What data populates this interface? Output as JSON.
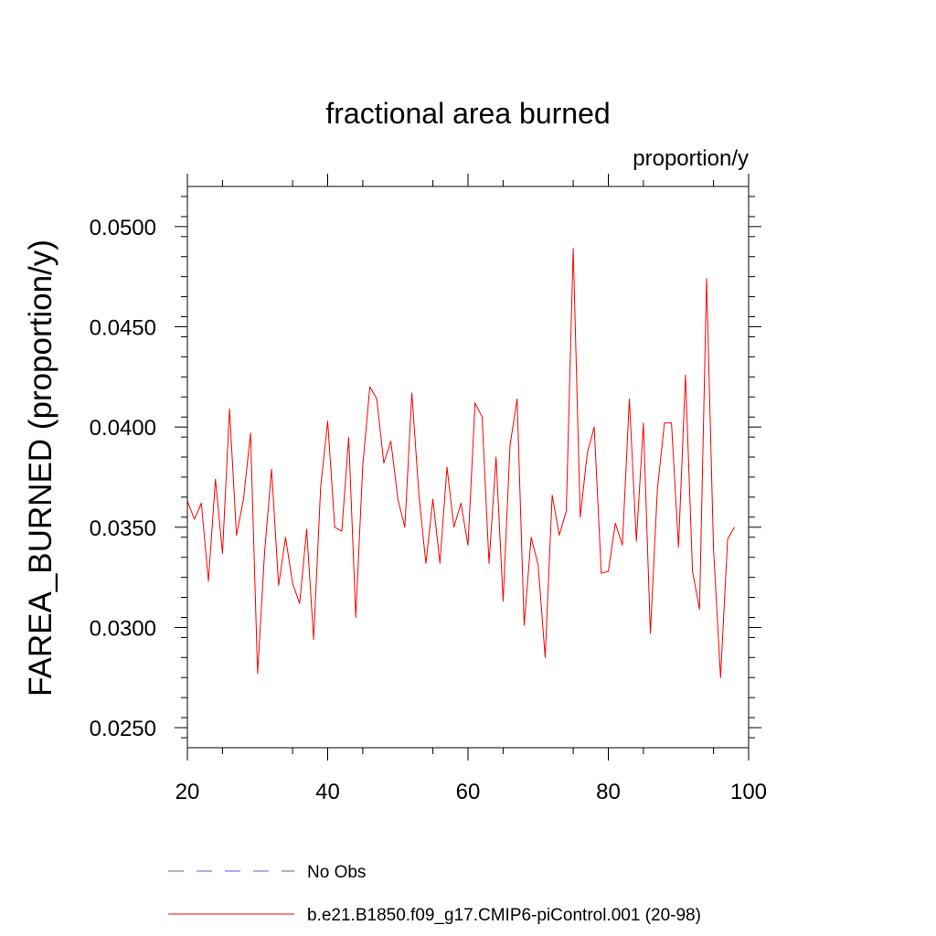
{
  "chart_data": {
    "type": "line",
    "title": "fractional area burned",
    "units_label": "proportion/y",
    "ylabel": "FAREA_BURNED  (proportion/y)",
    "xlabel": "",
    "xlim": [
      20,
      100
    ],
    "ylim": [
      0.024,
      0.052
    ],
    "xticks": [
      {
        "value": 20,
        "label": "20"
      },
      {
        "value": 40,
        "label": "40"
      },
      {
        "value": 60,
        "label": "60"
      },
      {
        "value": 80,
        "label": "80"
      },
      {
        "value": 100,
        "label": "100"
      }
    ],
    "yticks": [
      {
        "value": 0.025,
        "label": "0.0250"
      },
      {
        "value": 0.03,
        "label": "0.0300"
      },
      {
        "value": 0.035,
        "label": "0.0350"
      },
      {
        "value": 0.04,
        "label": "0.0400"
      },
      {
        "value": 0.045,
        "label": "0.0450"
      },
      {
        "value": 0.05,
        "label": "0.0500"
      }
    ],
    "legend": [
      {
        "name": "No Obs",
        "color": "#6a5acd",
        "dash": true
      },
      {
        "name": "b.e21.B1850.f09_g17.CMIP6-piControl.001 (20-98)",
        "color": "#ff0000",
        "dash": false
      }
    ],
    "series": [
      {
        "name": "b.e21.B1850.f09_g17.CMIP6-piControl.001 (20-98)",
        "color": "#ff0000",
        "x": [
          20,
          21,
          22,
          23,
          24,
          25,
          26,
          27,
          28,
          29,
          30,
          31,
          32,
          33,
          34,
          35,
          36,
          37,
          38,
          39,
          40,
          41,
          42,
          43,
          44,
          45,
          46,
          47,
          48,
          49,
          50,
          51,
          52,
          53,
          54,
          55,
          56,
          57,
          58,
          59,
          60,
          61,
          62,
          63,
          64,
          65,
          66,
          67,
          68,
          69,
          70,
          71,
          72,
          73,
          74,
          75,
          76,
          77,
          78,
          79,
          80,
          81,
          82,
          83,
          84,
          85,
          86,
          87,
          88,
          89,
          90,
          91,
          92,
          93,
          94,
          95,
          96,
          97,
          98
        ],
        "y": [
          0.0363,
          0.0354,
          0.0362,
          0.0323,
          0.0374,
          0.0337,
          0.0409,
          0.0346,
          0.0364,
          0.0397,
          0.0277,
          0.0337,
          0.0379,
          0.0321,
          0.0345,
          0.0322,
          0.0312,
          0.0349,
          0.0294,
          0.037,
          0.0403,
          0.035,
          0.0348,
          0.0395,
          0.0305,
          0.0381,
          0.042,
          0.0414,
          0.0382,
          0.0393,
          0.0364,
          0.035,
          0.0417,
          0.0366,
          0.0332,
          0.0364,
          0.0332,
          0.038,
          0.035,
          0.0362,
          0.0341,
          0.0412,
          0.0405,
          0.0332,
          0.0385,
          0.0313,
          0.0391,
          0.0414,
          0.0301,
          0.0345,
          0.0331,
          0.0285,
          0.0366,
          0.0346,
          0.0358,
          0.0489,
          0.0355,
          0.0387,
          0.04,
          0.0327,
          0.0328,
          0.0352,
          0.0341,
          0.0414,
          0.0343,
          0.0402,
          0.0297,
          0.0369,
          0.0402,
          0.0402,
          0.034,
          0.0426,
          0.0328,
          0.0309,
          0.0474,
          0.0339,
          0.0275,
          0.0344,
          0.035
        ]
      }
    ]
  }
}
